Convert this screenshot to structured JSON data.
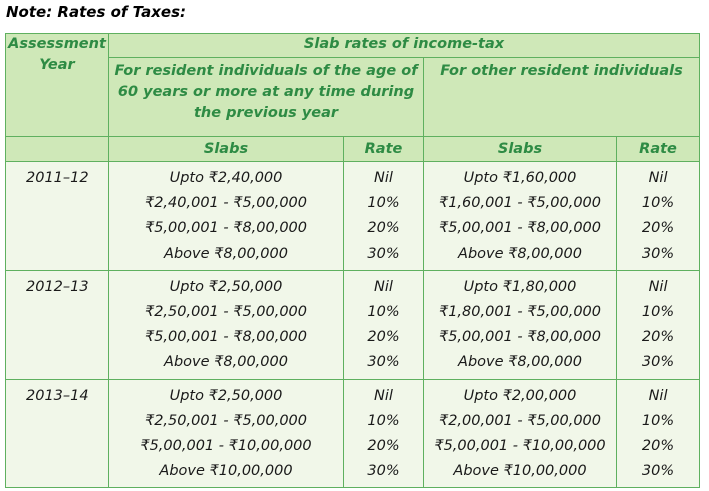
{
  "note": "Note: Rates of Taxes:",
  "headers": {
    "assessment_year": [
      "Assessment",
      "Year"
    ],
    "slab_rates": "Slab rates of income-tax",
    "group_senior": [
      "For resident individuals of the age of",
      "60 years or more at any time during",
      "the previous year"
    ],
    "group_other": "For other resident individuals",
    "slabs": "Slabs",
    "rate": "Rate"
  },
  "rows": [
    {
      "year": "2011–12",
      "senior_slabs": [
        "Upto ₹2,40,000",
        "₹2,40,001 - ₹5,00,000",
        "₹5,00,001 - ₹8,00,000",
        "Above ₹8,00,000"
      ],
      "senior_rates": [
        "Nil",
        "10%",
        "20%",
        "30%"
      ],
      "other_slabs": [
        "Upto ₹1,60,000",
        "₹1,60,001 - ₹5,00,000",
        "₹5,00,001 - ₹8,00,000",
        "Above ₹8,00,000"
      ],
      "other_rates": [
        "Nil",
        "10%",
        "20%",
        "30%"
      ]
    },
    {
      "year": "2012–13",
      "senior_slabs": [
        "Upto ₹2,50,000",
        "₹2,50,001 - ₹5,00,000",
        "₹5,00,001 - ₹8,00,000",
        "Above ₹8,00,000"
      ],
      "senior_rates": [
        "Nil",
        "10%",
        "20%",
        "30%"
      ],
      "other_slabs": [
        "Upto ₹1,80,000",
        "₹1,80,001 - ₹5,00,000",
        "₹5,00,001 - ₹8,00,000",
        "Above ₹8,00,000"
      ],
      "other_rates": [
        "Nil",
        "10%",
        "20%",
        "30%"
      ]
    },
    {
      "year": "2013–14",
      "senior_slabs": [
        "Upto ₹2,50,000",
        "₹2,50,001 - ₹5,00,000",
        "₹5,00,001 - ₹10,00,000",
        "Above ₹10,00,000"
      ],
      "senior_rates": [
        "Nil",
        "10%",
        "20%",
        "30%"
      ],
      "other_slabs": [
        "Upto ₹2,00,000",
        "₹2,00,001 - ₹5,00,000",
        "₹5,00,001 - ₹10,00,000",
        "Above ₹10,00,000"
      ],
      "other_rates": [
        "Nil",
        "10%",
        "20%",
        "30%"
      ]
    }
  ],
  "colors": {
    "header_bg": "#cfe8b8",
    "header_text": "#2e8b44",
    "body_bg": "#f1f7e9",
    "border": "#5fb05f"
  }
}
